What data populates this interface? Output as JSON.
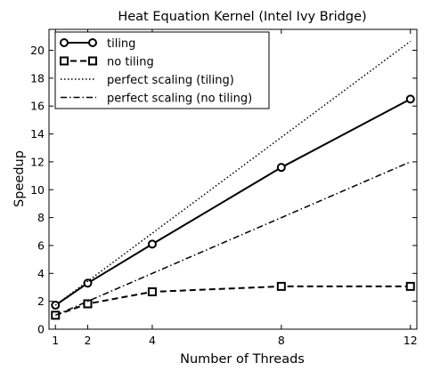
{
  "chart_data": {
    "type": "line",
    "title": "Heat Equation Kernel (Intel Ivy Bridge)",
    "xlabel": "Number of Threads",
    "ylabel": "Speedup",
    "xlim": [
      0.8,
      12.2
    ],
    "ylim": [
      0,
      21.5
    ],
    "xticks": [
      1,
      2,
      4,
      8,
      12
    ],
    "yticks": [
      0,
      2,
      4,
      6,
      8,
      10,
      12,
      14,
      16,
      18,
      20
    ],
    "grid": false,
    "legend_position": "top-left",
    "series": [
      {
        "name": "tiling",
        "x": [
          1,
          2,
          4,
          8,
          12
        ],
        "y": [
          1.72,
          3.3,
          6.1,
          11.6,
          16.5
        ],
        "line_style": "solid",
        "marker": "circle"
      },
      {
        "name": "no tiling",
        "x": [
          1,
          2,
          4,
          8,
          12
        ],
        "y": [
          1.0,
          1.82,
          2.68,
          3.07,
          3.07
        ],
        "line_style": "dashed",
        "marker": "square"
      },
      {
        "name": "perfect scaling (tiling)",
        "x": [
          1,
          12
        ],
        "y": [
          1.72,
          20.64
        ],
        "line_style": "dotted",
        "marker": "none"
      },
      {
        "name": "perfect scaling (no tiling)",
        "x": [
          1,
          12
        ],
        "y": [
          1.0,
          12.0
        ],
        "line_style": "dashdot",
        "marker": "none"
      }
    ]
  }
}
